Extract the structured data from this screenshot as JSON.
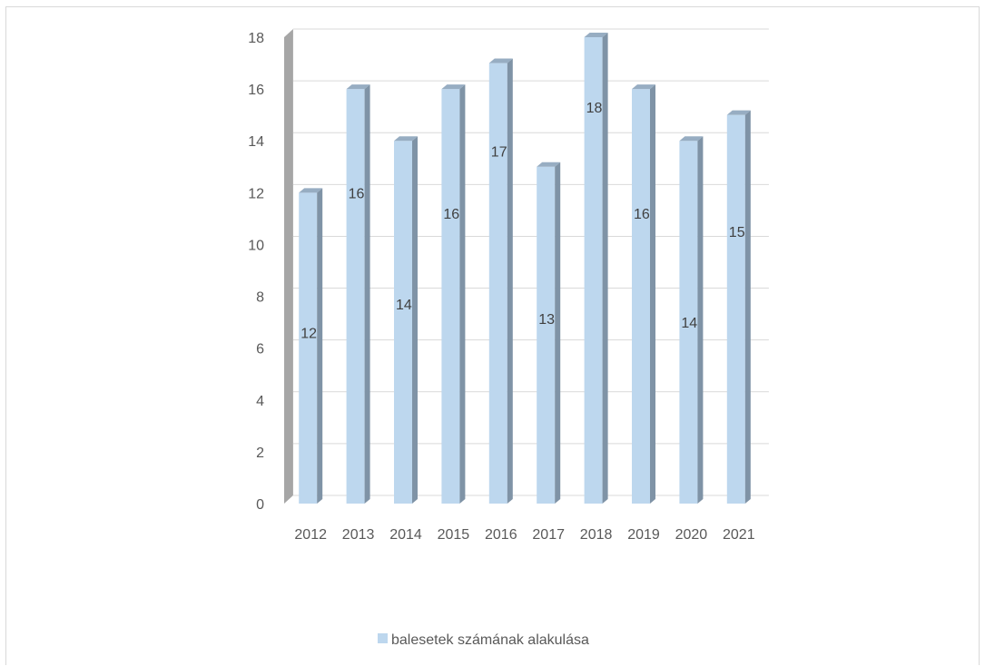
{
  "chart_data": {
    "type": "bar",
    "style": "3d-column",
    "categories": [
      "2012",
      "2013",
      "2014",
      "2015",
      "2016",
      "2017",
      "2018",
      "2019",
      "2020",
      "2021"
    ],
    "series": [
      {
        "name": "balesetek számának alakulása",
        "values": [
          12,
          16,
          14,
          16,
          17,
          13,
          18,
          16,
          14,
          15
        ]
      }
    ],
    "ylim": [
      0,
      18
    ],
    "yticks": [
      0,
      2,
      4,
      6,
      8,
      10,
      12,
      14,
      16,
      18
    ],
    "grid": true,
    "data_labels": true,
    "legend_position": "bottom",
    "colors": {
      "front": "#bdd7ee",
      "side": "#7f93a6",
      "top": "#97adc2",
      "wall_side": "#a6a6a6",
      "gridline": "#d9d9d9"
    }
  }
}
